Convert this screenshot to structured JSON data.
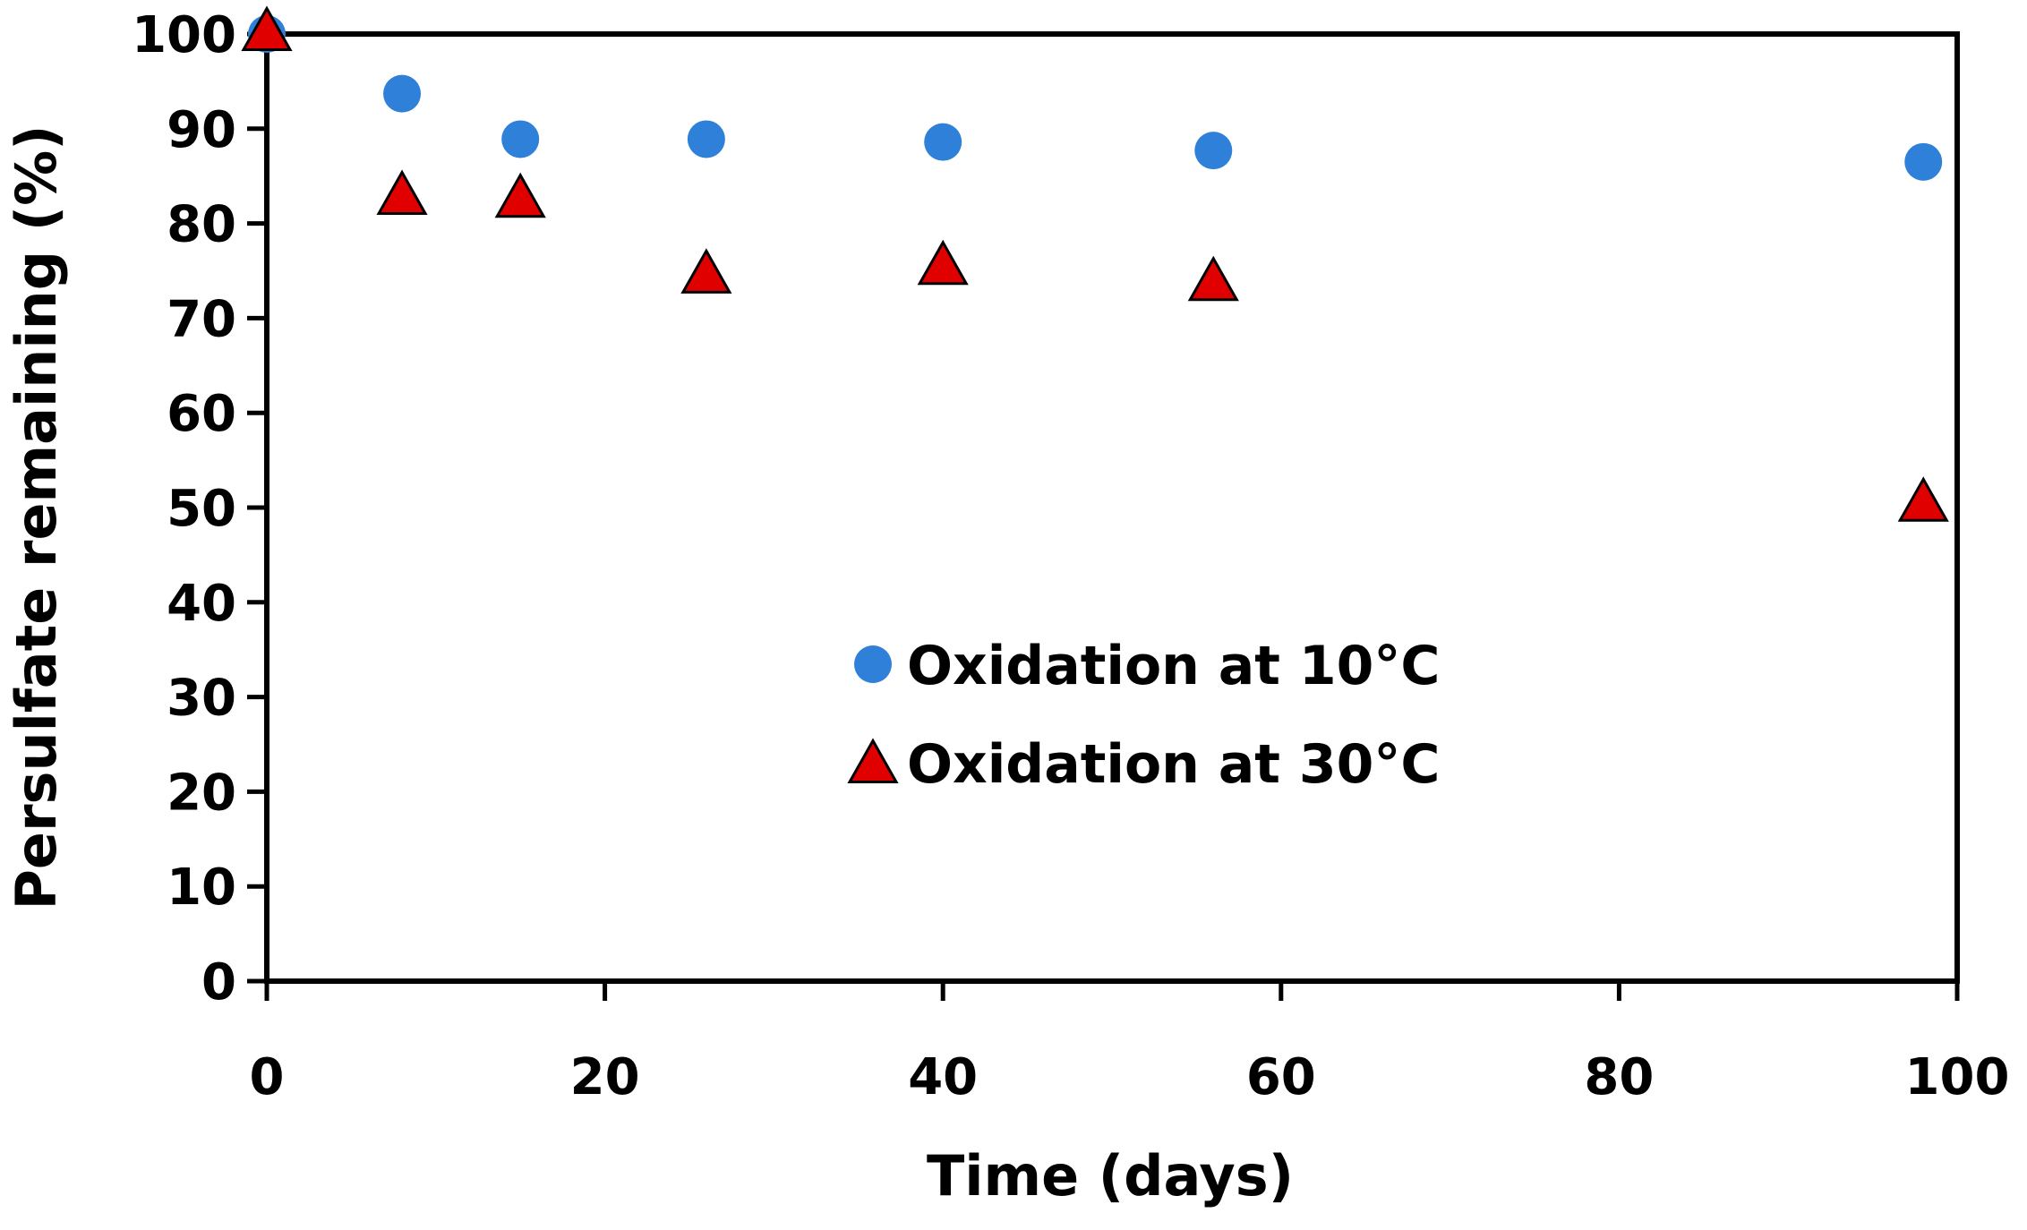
{
  "chart_data": {
    "type": "scatter",
    "title": "",
    "xlabel": "Time (days)",
    "ylabel": "Persulfate remaining (%)",
    "xlim": [
      0,
      100
    ],
    "ylim": [
      0,
      100
    ],
    "x_ticks": [
      0,
      20,
      40,
      60,
      80,
      100
    ],
    "y_ticks": [
      0,
      10,
      20,
      30,
      40,
      50,
      60,
      70,
      80,
      90,
      100
    ],
    "grid": false,
    "legend_position": "center",
    "series": [
      {
        "name": "Oxidation at 10°C",
        "marker": "circle",
        "color": "#2f80d8",
        "x": [
          0,
          8,
          15,
          26,
          40,
          56,
          98
        ],
        "y": [
          100,
          93.7,
          88.9,
          88.9,
          88.6,
          87.7,
          86.5
        ]
      },
      {
        "name": "Oxidation at 30°C",
        "marker": "triangle",
        "color": "#e00000",
        "x": [
          0,
          8,
          15,
          26,
          40,
          56,
          98
        ],
        "y": [
          100,
          82.7,
          82.4,
          74.4,
          75.3,
          73.6,
          50.3
        ]
      }
    ]
  }
}
